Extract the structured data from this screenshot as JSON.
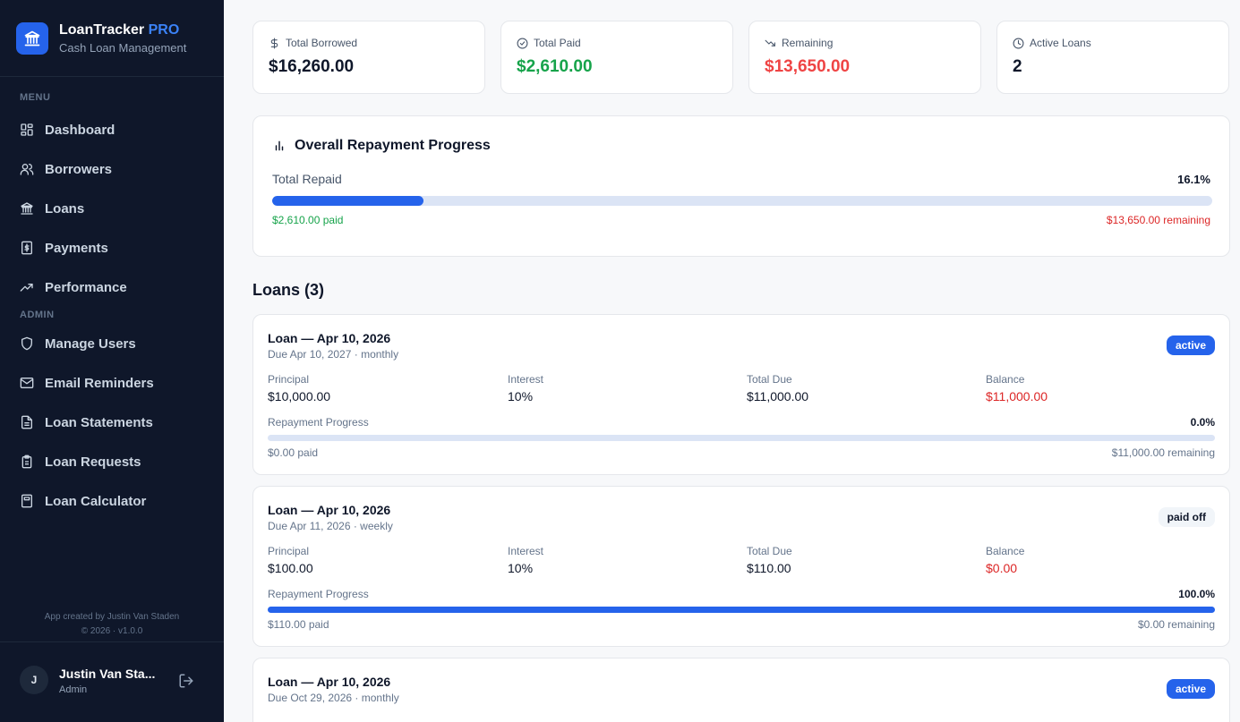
{
  "brand": {
    "name": "LoanTracker",
    "pro": "PRO",
    "subtitle": "Cash Loan Management"
  },
  "sidebar": {
    "menu_label": "MENU",
    "admin_label": "ADMIN",
    "menu_items": [
      {
        "label": "Dashboard",
        "icon": "grid-icon"
      },
      {
        "label": "Borrowers",
        "icon": "users-icon"
      },
      {
        "label": "Loans",
        "icon": "bank-icon"
      },
      {
        "label": "Payments",
        "icon": "dollar-file-icon"
      },
      {
        "label": "Performance",
        "icon": "trending-up-icon"
      }
    ],
    "admin_items": [
      {
        "label": "Manage Users",
        "icon": "shield-icon"
      },
      {
        "label": "Email Reminders",
        "icon": "mail-icon"
      },
      {
        "label": "Loan Statements",
        "icon": "document-icon"
      },
      {
        "label": "Loan Requests",
        "icon": "clipboard-icon"
      },
      {
        "label": "Loan Calculator",
        "icon": "calculator-icon"
      }
    ],
    "credit_line1": "App created by Justin Van Staden",
    "credit_line2": "© 2026 · v1.0.0",
    "user": {
      "initial": "J",
      "name": "Justin Van Sta...",
      "role": "Admin"
    }
  },
  "stats": [
    {
      "label": "Total Borrowed",
      "value": "$16,260.00",
      "color": "#0f172a",
      "icon": "dollar-icon"
    },
    {
      "label": "Total Paid",
      "value": "$2,610.00",
      "color": "#16a34a",
      "icon": "check-circle-icon"
    },
    {
      "label": "Remaining",
      "value": "$13,650.00",
      "color": "#ef4444",
      "icon": "trending-down-icon"
    },
    {
      "label": "Active Loans",
      "value": "2",
      "color": "#0f172a",
      "icon": "clock-icon"
    }
  ],
  "overall": {
    "title": "Overall Repayment Progress",
    "label": "Total Repaid",
    "percent_text": "16.1%",
    "percent": 16.1,
    "paid": "$2,610.00 paid",
    "remaining": "$13,650.00 remaining"
  },
  "loans_heading": "Loans (3)",
  "field_labels": {
    "principal": "Principal",
    "interest": "Interest",
    "total_due": "Total Due",
    "balance": "Balance",
    "progress": "Repayment Progress"
  },
  "loans": [
    {
      "title": "Loan — Apr 10, 2026",
      "sub": "Due Apr 10, 2027 · monthly",
      "status": "active",
      "principal": "$10,000.00",
      "interest": "10%",
      "total_due": "$11,000.00",
      "balance": "$11,000.00",
      "percent_text": "0.0%",
      "percent": 0,
      "paid": "$0.00 paid",
      "remaining": "$11,000.00 remaining"
    },
    {
      "title": "Loan — Apr 10, 2026",
      "sub": "Due Apr 11, 2026 · weekly",
      "status": "paid off",
      "principal": "$100.00",
      "interest": "10%",
      "total_due": "$110.00",
      "balance": "$0.00",
      "percent_text": "100.0%",
      "percent": 100,
      "paid": "$110.00 paid",
      "remaining": "$0.00 remaining"
    },
    {
      "title": "Loan — Apr 10, 2026",
      "sub": "Due Oct 29, 2026 · monthly",
      "status": "active"
    }
  ]
}
